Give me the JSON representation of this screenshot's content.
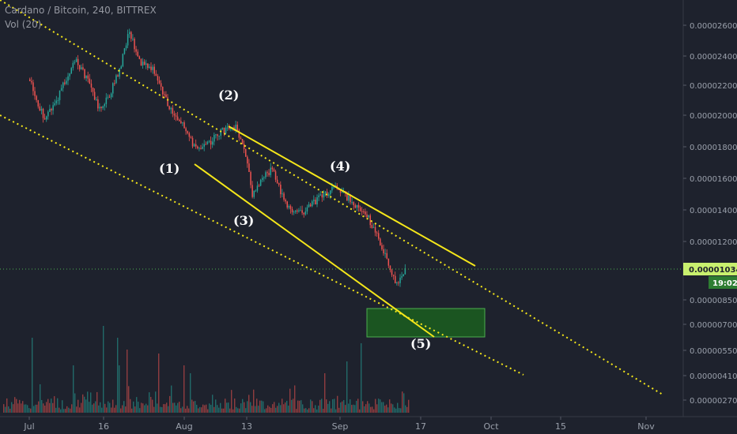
{
  "header": {
    "symbol_line": "Cardano / Bitcoin, 240, BITTREX",
    "volume_line": "Vol (20)"
  },
  "colors": {
    "background": "#1e222d",
    "candle_up": "#26a69a",
    "candle_down": "#ef5350",
    "channel_solid": "#f5e71a",
    "channel_dotted": "#f5e71a",
    "last_price_line": "#4caf50",
    "target_box_fill": "#1b5e20",
    "target_box_border": "#4caf50",
    "price_tag_bg": "#c8f06e",
    "time_tag_bg": "#2e7d32"
  },
  "chart_data": {
    "type": "candlestick",
    "title": "Cardano / Bitcoin, 240, BITTREX",
    "x_ticks": [
      "Jul",
      "16",
      "Aug",
      "13",
      "Sep",
      "17",
      "Oct",
      "15",
      "Nov"
    ],
    "y_ticks": [
      "0.00002600",
      "0.00002400",
      "0.00002200",
      "0.00002000",
      "0.00001800",
      "0.00001600",
      "0.00001400",
      "0.00001200",
      "0.00001034",
      "0.00000850",
      "0.00000700",
      "0.00000550",
      "0.00000410",
      "0.00000270"
    ],
    "last_price": "0.00001034",
    "countdown": "19:02",
    "price_path": [
      {
        "d": "Jul 1",
        "p": 2.24e-05
      },
      {
        "d": "Jul 4",
        "p": 1.96e-05
      },
      {
        "d": "Jul 7",
        "p": 2.14e-05
      },
      {
        "d": "Jul 10",
        "p": 2.38e-05
      },
      {
        "d": "Jul 13",
        "p": 2.22e-05
      },
      {
        "d": "Jul 15",
        "p": 2.04e-05
      },
      {
        "d": "Jul 17",
        "p": 2.13e-05
      },
      {
        "d": "Jul 19",
        "p": 2.3e-05
      },
      {
        "d": "Jul 21",
        "p": 2.57e-05
      },
      {
        "d": "Jul 23",
        "p": 2.36e-05
      },
      {
        "d": "Jul 26",
        "p": 2.3e-05
      },
      {
        "d": "Jul 29",
        "p": 2.04e-05
      },
      {
        "d": "Aug 1",
        "p": 1.93e-05
      },
      {
        "d": "Aug 3",
        "p": 1.78e-05
      },
      {
        "d": "Aug 5",
        "p": 1.8e-05
      },
      {
        "d": "Aug 8",
        "p": 1.9e-05
      },
      {
        "d": "Aug 11",
        "p": 1.92e-05
      },
      {
        "d": "Aug 13",
        "p": 1.72e-05
      },
      {
        "d": "Aug 14",
        "p": 1.48e-05
      },
      {
        "d": "Aug 16",
        "p": 1.6e-05
      },
      {
        "d": "Aug 18",
        "p": 1.66e-05
      },
      {
        "d": "Aug 21",
        "p": 1.42e-05
      },
      {
        "d": "Aug 24",
        "p": 1.38e-05
      },
      {
        "d": "Aug 27",
        "p": 1.46e-05
      },
      {
        "d": "Aug 31",
        "p": 1.54e-05
      },
      {
        "d": "Sep 3",
        "p": 1.46e-05
      },
      {
        "d": "Sep 6",
        "p": 1.38e-05
      },
      {
        "d": "Sep 9",
        "p": 1.18e-05
      },
      {
        "d": "Sep 12",
        "p": 9.4e-06
      },
      {
        "d": "Sep 14",
        "p": 1.03e-05
      }
    ],
    "wave_labels": [
      "(1)",
      "(2)",
      "(3)",
      "(4)",
      "(5)"
    ],
    "volume": {
      "label": "Vol (20)"
    }
  }
}
